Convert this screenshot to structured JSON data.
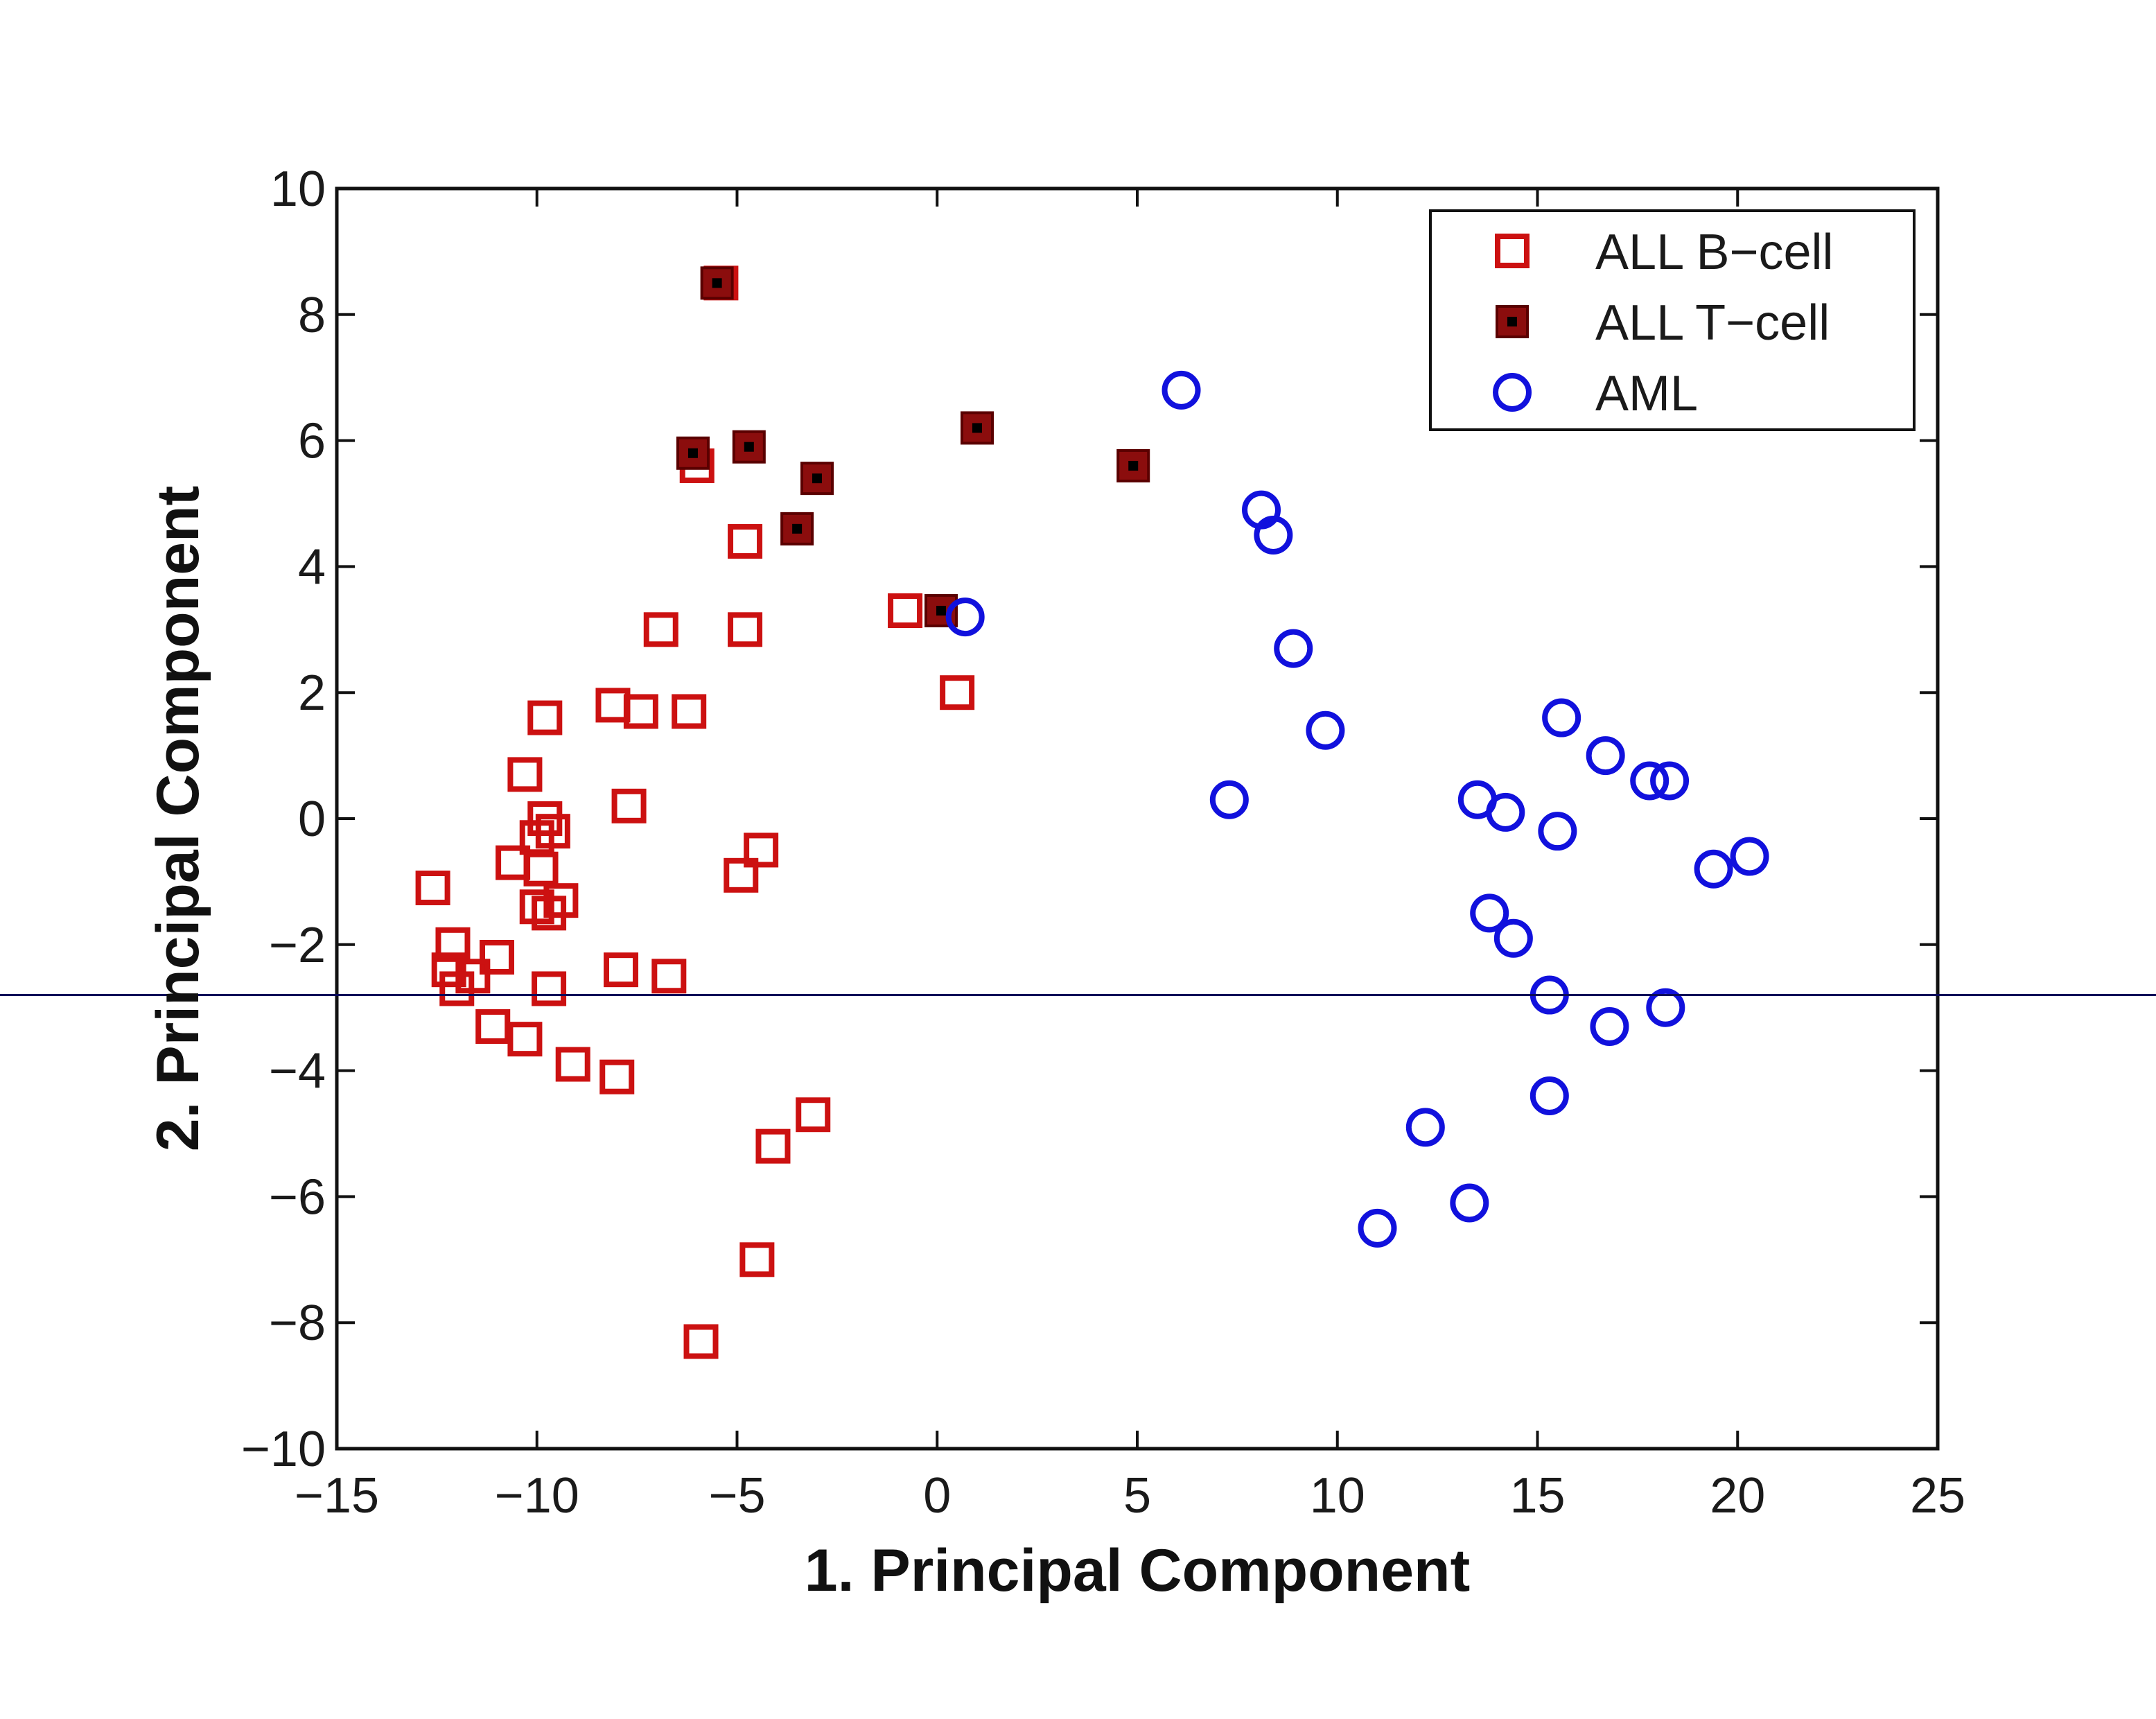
{
  "chart_data": {
    "type": "scatter",
    "title": "",
    "xlabel": "1. Principal Component",
    "ylabel": "2. Principal Component",
    "xlim": [
      -15,
      25
    ],
    "ylim": [
      -10,
      10
    ],
    "xticks": [
      -15,
      -10,
      -5,
      0,
      5,
      10,
      15,
      20,
      25
    ],
    "yticks": [
      -10,
      -8,
      -6,
      -4,
      -2,
      0,
      2,
      4,
      6,
      8,
      10
    ],
    "xtick_labels": [
      "−15",
      "−10",
      "−5",
      "0",
      "5",
      "10",
      "15",
      "20",
      "25"
    ],
    "ytick_labels": [
      "−10",
      "−8",
      "−6",
      "−4",
      "−2",
      "0",
      "2",
      "4",
      "6",
      "8",
      "10"
    ],
    "grid": false,
    "legend": "top-right",
    "reference_line": {
      "y": -2.8,
      "color": "#0a0a5a"
    },
    "series": [
      {
        "name": "ALL B−cell",
        "marker": "open-square",
        "color": "#cc1111",
        "points": [
          [
            -5.4,
            8.5
          ],
          [
            -6.0,
            5.6
          ],
          [
            -4.8,
            4.4
          ],
          [
            -6.9,
            3.0
          ],
          [
            -4.8,
            3.0
          ],
          [
            -0.8,
            3.3
          ],
          [
            0.5,
            2.0
          ],
          [
            -9.8,
            1.6
          ],
          [
            -8.1,
            1.8
          ],
          [
            -7.4,
            1.7
          ],
          [
            -6.2,
            1.7
          ],
          [
            -10.3,
            0.7
          ],
          [
            -9.8,
            0.0
          ],
          [
            -9.6,
            -0.2
          ],
          [
            -10.0,
            -0.3
          ],
          [
            -7.7,
            0.2
          ],
          [
            -4.4,
            -0.5
          ],
          [
            -4.9,
            -0.9
          ],
          [
            -10.6,
            -0.7
          ],
          [
            -9.9,
            -0.8
          ],
          [
            -10.0,
            -1.4
          ],
          [
            -9.4,
            -1.3
          ],
          [
            -9.7,
            -1.5
          ],
          [
            -12.6,
            -1.1
          ],
          [
            -12.1,
            -2.0
          ],
          [
            -11.0,
            -2.2
          ],
          [
            -12.2,
            -2.4
          ],
          [
            -11.6,
            -2.5
          ],
          [
            -7.9,
            -2.4
          ],
          [
            -6.7,
            -2.5
          ],
          [
            -12.0,
            -2.7
          ],
          [
            -9.7,
            -2.7
          ],
          [
            -11.1,
            -3.3
          ],
          [
            -10.3,
            -3.5
          ],
          [
            -9.1,
            -3.9
          ],
          [
            -8.0,
            -4.1
          ],
          [
            -3.1,
            -4.7
          ],
          [
            -4.1,
            -5.2
          ],
          [
            -4.5,
            -7.0
          ],
          [
            -5.9,
            -8.3
          ]
        ]
      },
      {
        "name": "ALL T−cell",
        "marker": "filled-square",
        "color": "#8b0d0d",
        "points": [
          [
            -5.5,
            8.5
          ],
          [
            -6.1,
            5.8
          ],
          [
            -4.7,
            5.9
          ],
          [
            -3.0,
            5.4
          ],
          [
            -3.5,
            4.6
          ],
          [
            1.0,
            6.2
          ],
          [
            4.9,
            5.6
          ],
          [
            0.1,
            3.3
          ]
        ]
      },
      {
        "name": "AML",
        "marker": "open-circle",
        "color": "#1111dd",
        "points": [
          [
            6.1,
            6.8
          ],
          [
            8.1,
            4.9
          ],
          [
            8.4,
            4.5
          ],
          [
            0.7,
            3.2
          ],
          [
            8.9,
            2.7
          ],
          [
            9.7,
            1.4
          ],
          [
            7.3,
            0.3
          ],
          [
            15.6,
            1.6
          ],
          [
            16.7,
            1.0
          ],
          [
            17.8,
            0.6
          ],
          [
            18.3,
            0.6
          ],
          [
            13.5,
            0.3
          ],
          [
            14.2,
            0.1
          ],
          [
            15.5,
            -0.2
          ],
          [
            19.4,
            -0.8
          ],
          [
            20.3,
            -0.6
          ],
          [
            13.8,
            -1.5
          ],
          [
            14.4,
            -1.9
          ],
          [
            15.3,
            -2.8
          ],
          [
            16.8,
            -3.3
          ],
          [
            18.2,
            -3.0
          ],
          [
            15.3,
            -4.4
          ],
          [
            12.2,
            -4.9
          ],
          [
            11.0,
            -6.5
          ],
          [
            13.3,
            -6.1
          ]
        ]
      }
    ]
  }
}
